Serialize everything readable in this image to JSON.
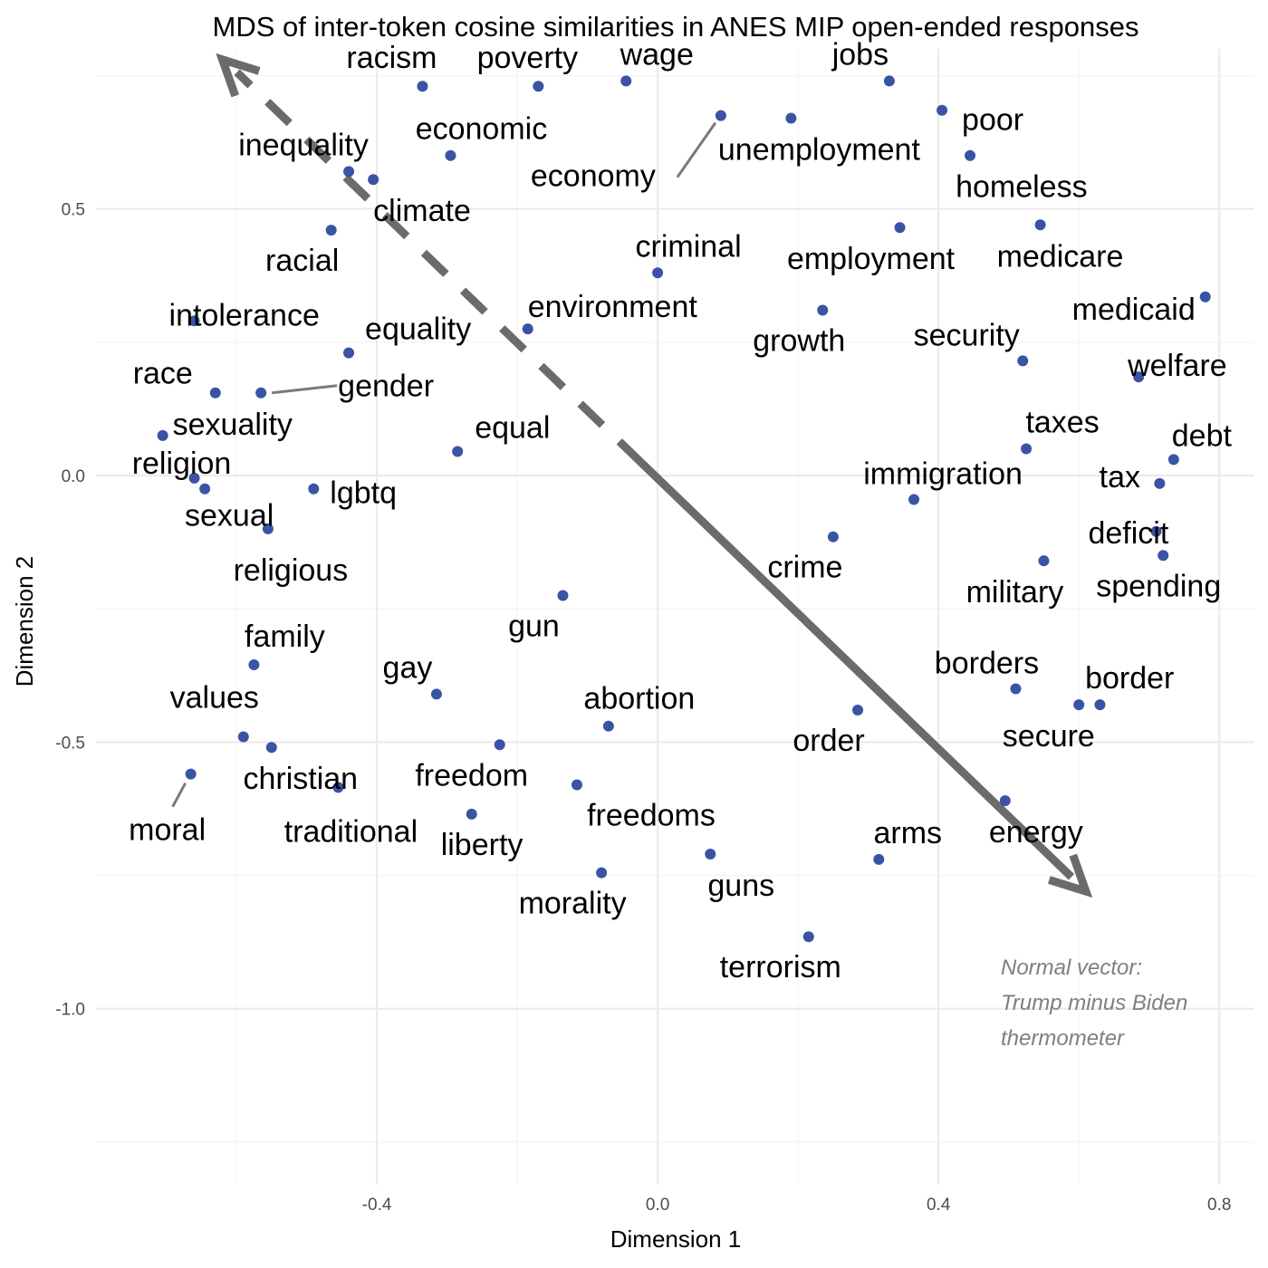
{
  "chart_data": {
    "type": "scatter",
    "title": "MDS of inter-token cosine similarities in ANES MIP open-ended responses",
    "xlabel": "Dimension 1",
    "ylabel": "Dimension 2",
    "xlim": [
      -0.8,
      0.85
    ],
    "ylim": [
      -1.33,
      0.8
    ],
    "x_ticks": [
      -0.4,
      0.0,
      0.4,
      0.8
    ],
    "y_ticks": [
      -1.0,
      -0.5,
      0.0,
      0.5
    ],
    "x_tick_labels": [
      "-0.4",
      "0.0",
      "0.4",
      "0.8"
    ],
    "y_tick_labels": [
      "-1.0",
      "-0.5",
      "0.0",
      "0.5"
    ],
    "grid": true,
    "point_color": "#3a53a4",
    "arrow_color": "#6b6b6b",
    "note": [
      "Normal vector:",
      "Trump minus Biden",
      "thermometer"
    ],
    "arrow": {
      "from": [
        0.61,
        -0.78
      ],
      "to": [
        -0.62,
        0.78
      ]
    },
    "points": [
      {
        "label": "racism",
        "x": -0.335,
        "y": 0.73
      },
      {
        "label": "poverty",
        "x": -0.17,
        "y": 0.73
      },
      {
        "label": "wage",
        "x": -0.045,
        "y": 0.74
      },
      {
        "label": "jobs",
        "x": 0.33,
        "y": 0.74
      },
      {
        "label": "poor",
        "x": 0.405,
        "y": 0.685
      },
      {
        "label": "economy",
        "x": 0.09,
        "y": 0.675
      },
      {
        "label": "unemployment",
        "x": 0.19,
        "y": 0.67
      },
      {
        "label": "economic",
        "x": -0.295,
        "y": 0.6
      },
      {
        "label": "homeless",
        "x": 0.445,
        "y": 0.6
      },
      {
        "label": "inequality",
        "x": -0.44,
        "y": 0.57
      },
      {
        "label": "climate",
        "x": -0.405,
        "y": 0.555
      },
      {
        "label": "medicare",
        "x": 0.545,
        "y": 0.47
      },
      {
        "label": "employment",
        "x": 0.345,
        "y": 0.465
      },
      {
        "label": "racial",
        "x": -0.465,
        "y": 0.46
      },
      {
        "label": "criminal",
        "x": 0.0,
        "y": 0.38
      },
      {
        "label": "medicaid",
        "x": 0.78,
        "y": 0.335
      },
      {
        "label": "growth",
        "x": 0.235,
        "y": 0.31
      },
      {
        "label": "intolerance",
        "x": -0.66,
        "y": 0.29
      },
      {
        "label": "environment",
        "x": -0.185,
        "y": 0.275
      },
      {
        "label": "equality",
        "x": -0.44,
        "y": 0.23
      },
      {
        "label": "security",
        "x": 0.52,
        "y": 0.215
      },
      {
        "label": "welfare",
        "x": 0.685,
        "y": 0.185
      },
      {
        "label": "race",
        "x": -0.63,
        "y": 0.155
      },
      {
        "label": "gender",
        "x": -0.565,
        "y": 0.155
      },
      {
        "label": "sexuality",
        "x": -0.705,
        "y": 0.075
      },
      {
        "label": "taxes",
        "x": 0.525,
        "y": 0.05
      },
      {
        "label": "equal",
        "x": -0.285,
        "y": 0.045
      },
      {
        "label": "debt",
        "x": 0.735,
        "y": 0.03
      },
      {
        "label": "religion",
        "x": -0.66,
        "y": -0.005
      },
      {
        "label": "tax",
        "x": 0.715,
        "y": -0.015
      },
      {
        "label": "sexual",
        "x": -0.645,
        "y": -0.025
      },
      {
        "label": "lgbtq",
        "x": -0.49,
        "y": -0.025
      },
      {
        "label": "immigration",
        "x": 0.365,
        "y": -0.045
      },
      {
        "label": "religious",
        "x": -0.555,
        "y": -0.1
      },
      {
        "label": "deficit",
        "x": 0.71,
        "y": -0.105
      },
      {
        "label": "crime",
        "x": 0.25,
        "y": -0.115
      },
      {
        "label": "spending",
        "x": 0.72,
        "y": -0.15
      },
      {
        "label": "military",
        "x": 0.55,
        "y": -0.16
      },
      {
        "label": "gun",
        "x": -0.135,
        "y": -0.225
      },
      {
        "label": "family",
        "x": -0.575,
        "y": -0.355
      },
      {
        "label": "borders",
        "x": 0.51,
        "y": -0.4
      },
      {
        "label": "gay",
        "x": -0.315,
        "y": -0.41
      },
      {
        "label": "border",
        "x": 0.6,
        "y": -0.43
      },
      {
        "label": "border",
        "x": 0.63,
        "y": -0.43
      },
      {
        "label": "order",
        "x": 0.285,
        "y": -0.44
      },
      {
        "label": "abortion",
        "x": -0.07,
        "y": -0.47
      },
      {
        "label": "secure",
        "x": 0.495,
        "y": -0.61
      },
      {
        "label": "values",
        "x": -0.59,
        "y": -0.49
      },
      {
        "label": "christian",
        "x": -0.55,
        "y": -0.51
      },
      {
        "label": "freedom",
        "x": -0.225,
        "y": -0.505
      },
      {
        "label": "moral",
        "x": -0.665,
        "y": -0.56
      },
      {
        "label": "freedoms",
        "x": -0.115,
        "y": -0.58
      },
      {
        "label": "traditional",
        "x": -0.455,
        "y": -0.585
      },
      {
        "label": "liberty",
        "x": -0.265,
        "y": -0.635
      },
      {
        "label": "guns",
        "x": 0.075,
        "y": -0.71
      },
      {
        "label": "arms",
        "x": 0.315,
        "y": -0.72
      },
      {
        "label": "morality",
        "x": -0.08,
        "y": -0.745
      },
      {
        "label": "terrorism",
        "x": 0.215,
        "y": -0.865
      }
    ]
  }
}
